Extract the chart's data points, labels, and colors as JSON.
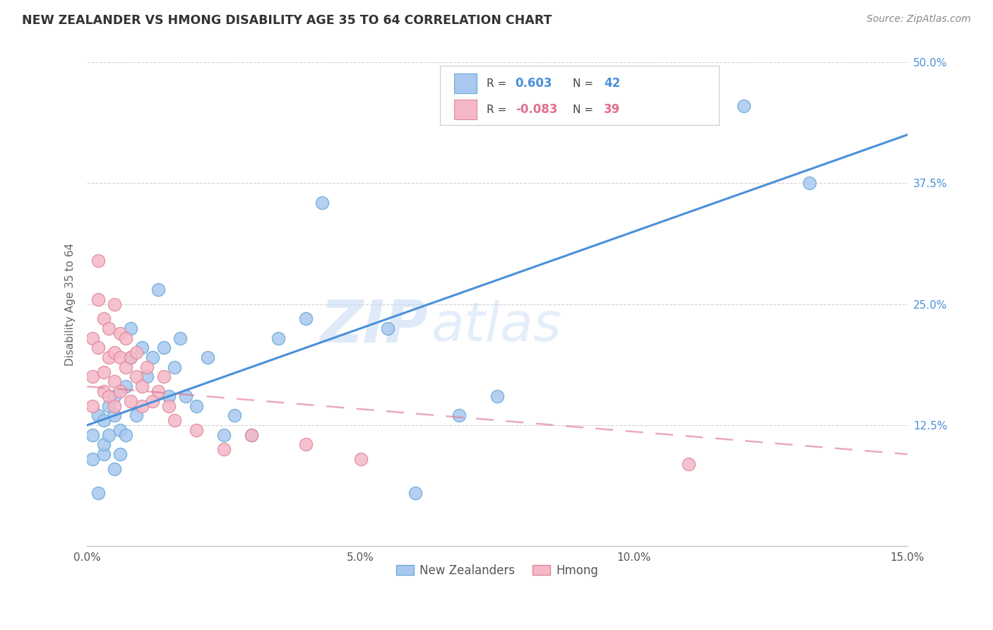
{
  "title": "NEW ZEALANDER VS HMONG DISABILITY AGE 35 TO 64 CORRELATION CHART",
  "source": "Source: ZipAtlas.com",
  "xlabel_bottom_nz": "New Zealanders",
  "xlabel_bottom_hm": "Hmong",
  "axis_ylabel": "Disability Age 35 to 64",
  "xmin": 0.0,
  "xmax": 0.15,
  "ymin": 0.0,
  "ymax": 0.5,
  "xticks": [
    0.0,
    0.05,
    0.1,
    0.15
  ],
  "xticklabels": [
    "0.0%",
    "5.0%",
    "10.0%",
    "15.0%"
  ],
  "yticks": [
    0.0,
    0.125,
    0.25,
    0.375,
    0.5
  ],
  "yticklabels": [
    "",
    "12.5%",
    "25.0%",
    "37.5%",
    "50.0%"
  ],
  "legend_r_nz": "0.603",
  "legend_n_nz": "42",
  "legend_r_hm": "-0.083",
  "legend_n_hm": "39",
  "nz_color": "#a8c8f0",
  "nz_edge": "#6aaad4",
  "nz_line_color": "#4a90d9",
  "hm_color": "#f5b8c8",
  "hm_edge": "#e08898",
  "hm_line_color": "#e07090",
  "background": "#ffffff",
  "grid_color": "#cccccc",
  "watermark_zip": "ZIP",
  "watermark_atlas": "atlas",
  "nz_points_x": [
    0.001,
    0.001,
    0.002,
    0.002,
    0.003,
    0.003,
    0.003,
    0.004,
    0.004,
    0.005,
    0.005,
    0.005,
    0.006,
    0.006,
    0.007,
    0.007,
    0.008,
    0.008,
    0.009,
    0.01,
    0.011,
    0.012,
    0.013,
    0.014,
    0.015,
    0.016,
    0.017,
    0.018,
    0.02,
    0.022,
    0.025,
    0.027,
    0.03,
    0.035,
    0.04,
    0.043,
    0.055,
    0.06,
    0.068,
    0.075,
    0.12,
    0.132
  ],
  "nz_points_y": [
    0.09,
    0.115,
    0.055,
    0.135,
    0.095,
    0.13,
    0.105,
    0.115,
    0.145,
    0.08,
    0.135,
    0.155,
    0.12,
    0.095,
    0.165,
    0.115,
    0.195,
    0.225,
    0.135,
    0.205,
    0.175,
    0.195,
    0.265,
    0.205,
    0.155,
    0.185,
    0.215,
    0.155,
    0.145,
    0.195,
    0.115,
    0.135,
    0.115,
    0.215,
    0.235,
    0.355,
    0.225,
    0.055,
    0.135,
    0.155,
    0.455,
    0.375
  ],
  "hm_points_x": [
    0.001,
    0.001,
    0.001,
    0.002,
    0.002,
    0.002,
    0.003,
    0.003,
    0.003,
    0.004,
    0.004,
    0.004,
    0.005,
    0.005,
    0.005,
    0.005,
    0.006,
    0.006,
    0.006,
    0.007,
    0.007,
    0.008,
    0.008,
    0.009,
    0.009,
    0.01,
    0.01,
    0.011,
    0.012,
    0.013,
    0.014,
    0.015,
    0.016,
    0.02,
    0.025,
    0.03,
    0.04,
    0.05,
    0.11
  ],
  "hm_points_y": [
    0.175,
    0.215,
    0.145,
    0.295,
    0.255,
    0.205,
    0.18,
    0.235,
    0.16,
    0.195,
    0.225,
    0.155,
    0.25,
    0.2,
    0.17,
    0.145,
    0.195,
    0.16,
    0.22,
    0.185,
    0.215,
    0.15,
    0.195,
    0.175,
    0.2,
    0.165,
    0.145,
    0.185,
    0.15,
    0.16,
    0.175,
    0.145,
    0.13,
    0.12,
    0.1,
    0.115,
    0.105,
    0.09,
    0.085
  ],
  "nz_line_x0": 0.0,
  "nz_line_y0": 0.125,
  "nz_line_x1": 0.15,
  "nz_line_y1": 0.425,
  "hm_line_x0": 0.0,
  "hm_line_y0": 0.165,
  "hm_line_x1": 0.15,
  "hm_line_y1": 0.095
}
